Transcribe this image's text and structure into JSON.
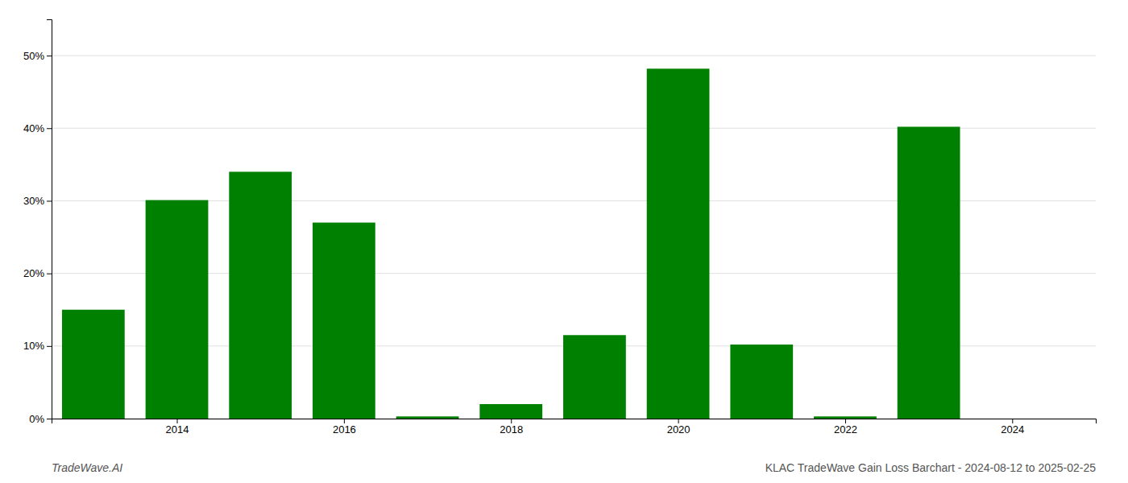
{
  "chart_data": {
    "type": "bar",
    "x": [
      2013,
      2014,
      2015,
      2016,
      2017,
      2018,
      2019,
      2020,
      2021,
      2022,
      2023
    ],
    "values": [
      15.0,
      30.1,
      34.0,
      27.0,
      0.3,
      2.0,
      11.5,
      48.2,
      10.2,
      0.3,
      40.2
    ],
    "color": "#008000",
    "xlim": [
      2012.5,
      2025.0
    ],
    "xticks": [
      2014,
      2016,
      2018,
      2020,
      2022,
      2024
    ],
    "ylim": [
      0,
      55
    ],
    "yticks": [
      {
        "value": 0,
        "label": "0%"
      },
      {
        "value": 10,
        "label": "10%"
      },
      {
        "value": 20,
        "label": "20%"
      },
      {
        "value": 30,
        "label": "30%"
      },
      {
        "value": 40,
        "label": "40%"
      },
      {
        "value": 50,
        "label": "50%"
      }
    ],
    "grid": true,
    "annotations": [
      "TradeWave.AI",
      "KLAC TradeWave Gain Loss Barchart - 2024-08-12 to 2025-02-25"
    ]
  }
}
